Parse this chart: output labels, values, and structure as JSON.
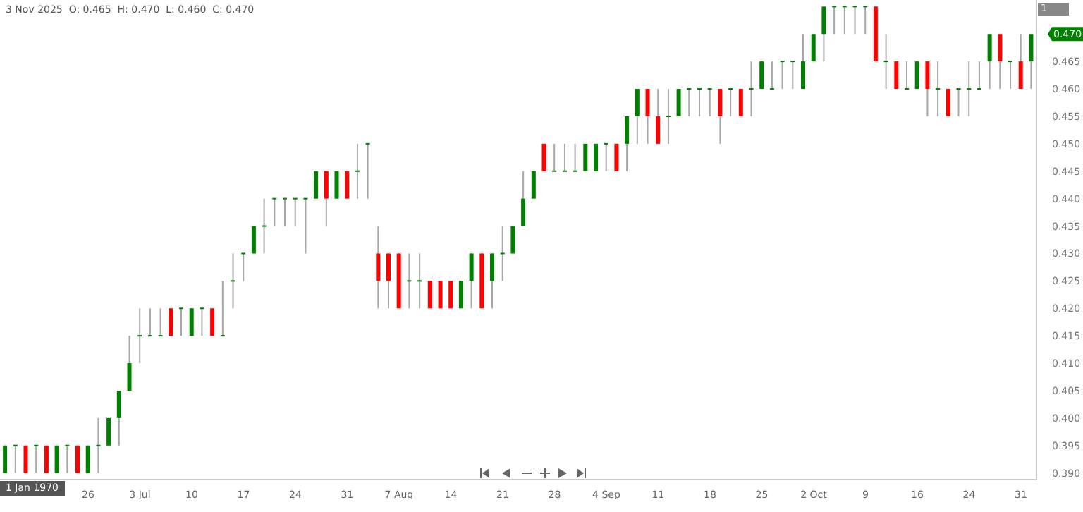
{
  "chart_data": {
    "type": "candlestick",
    "title": "3 Nov 2025  O: 0.465  H: 0.470  L: 0.460  C: 0.470",
    "annotations": [
      "1 Jan 1970",
      "1"
    ],
    "colors": [
      "#008000",
      "#008000",
      "#ff0000",
      "#008000",
      "#ff0000",
      "#008000",
      "#008000",
      "#ff0000",
      "#008000",
      "#008000",
      "#008000",
      "#008000",
      "#008000",
      "#008000",
      "#008000",
      "#008000",
      "#ff0000",
      "#008000",
      "#008000",
      "#008000",
      "#ff0000",
      "#008000",
      "#008000",
      "#008000",
      "#008000",
      "#008000",
      "#008000",
      "#008000",
      "#008000",
      "#008000",
      "#008000",
      "#ff0000",
      "#008000",
      "#ff0000",
      "#008000",
      "#008000",
      "#ff0000",
      "#ff0000",
      "#ff0000",
      "#008000",
      "#008000",
      "#ff0000",
      "#ff0000",
      "#ff0000",
      "#008000",
      "#008000",
      "#ff0000",
      "#008000",
      "#008000",
      "#008000",
      "#008000",
      "#008000",
      "#ff0000",
      "#008000",
      "#008000",
      "#008000",
      "#008000",
      "#008000",
      "#008000",
      "#ff0000",
      "#008000",
      "#008000",
      "#ff0000",
      "#ff0000",
      "#008000",
      "#008000",
      "#008000",
      "#008000",
      "#008000",
      "#ff0000",
      "#008000",
      "#ff0000",
      "#008000",
      "#008000",
      "#008000",
      "#008000",
      "#008000",
      "#008000",
      "#008000",
      "#008000",
      "#008000",
      "#008000",
      "#008000",
      "#008000",
      "#ff0000",
      "#008000",
      "#ff0000",
      "#008000",
      "#008000",
      "#ff0000",
      "#008000",
      "#ff0000",
      "#008000",
      "#008000",
      "#008000",
      "#008000",
      "#ff0000",
      "#008000",
      "#ff0000",
      "#008000"
    ],
    "categories": [
      null,
      null,
      null,
      null,
      null,
      null,
      null,
      null,
      "26",
      null,
      null,
      null,
      null,
      "3 Jul",
      null,
      null,
      null,
      null,
      "10",
      null,
      null,
      null,
      null,
      "17",
      null,
      null,
      null,
      null,
      "24",
      null,
      null,
      null,
      null,
      "31",
      null,
      null,
      null,
      null,
      "7 Aug",
      null,
      null,
      null,
      null,
      "14",
      null,
      null,
      null,
      null,
      "21",
      null,
      null,
      null,
      null,
      "28",
      null,
      null,
      null,
      null,
      "4 Sep",
      null,
      null,
      null,
      null,
      "11",
      null,
      null,
      null,
      null,
      "18",
      null,
      null,
      null,
      null,
      "25",
      null,
      null,
      null,
      null,
      "2 Oct",
      null,
      null,
      null,
      null,
      "9",
      null,
      null,
      null,
      null,
      "16",
      null,
      null,
      null,
      null,
      "24",
      null,
      null,
      null,
      null,
      "31",
      null
    ],
    "ohlc": [
      [
        0.39,
        0.395,
        0.39,
        0.395
      ],
      [
        0.395,
        0.395,
        0.39,
        0.395
      ],
      [
        0.395,
        0.395,
        0.39,
        0.39
      ],
      [
        0.395,
        0.395,
        0.39,
        0.395
      ],
      [
        0.395,
        0.395,
        0.39,
        0.39
      ],
      [
        0.39,
        0.395,
        0.39,
        0.395
      ],
      [
        0.395,
        0.395,
        0.39,
        0.395
      ],
      [
        0.395,
        0.395,
        0.39,
        0.39
      ],
      [
        0.39,
        0.395,
        0.39,
        0.395
      ],
      [
        0.395,
        0.4,
        0.39,
        0.395
      ],
      [
        0.395,
        0.4,
        0.395,
        0.4
      ],
      [
        0.4,
        0.405,
        0.395,
        0.405
      ],
      [
        0.405,
        0.415,
        0.405,
        0.41
      ],
      [
        0.415,
        0.42,
        0.41,
        0.415
      ],
      [
        0.415,
        0.42,
        0.415,
        0.415
      ],
      [
        0.415,
        0.42,
        0.415,
        0.415
      ],
      [
        0.42,
        0.42,
        0.415,
        0.415
      ],
      [
        0.42,
        0.42,
        0.415,
        0.42
      ],
      [
        0.415,
        0.42,
        0.415,
        0.42
      ],
      [
        0.42,
        0.42,
        0.415,
        0.42
      ],
      [
        0.42,
        0.42,
        0.415,
        0.415
      ],
      [
        0.415,
        0.425,
        0.415,
        0.415
      ],
      [
        0.425,
        0.43,
        0.42,
        0.425
      ],
      [
        0.43,
        0.43,
        0.425,
        0.43
      ],
      [
        0.43,
        0.435,
        0.43,
        0.435
      ],
      [
        0.435,
        0.44,
        0.43,
        0.435
      ],
      [
        0.44,
        0.44,
        0.435,
        0.44
      ],
      [
        0.44,
        0.44,
        0.435,
        0.44
      ],
      [
        0.44,
        0.44,
        0.435,
        0.44
      ],
      [
        0.44,
        0.44,
        0.43,
        0.44
      ],
      [
        0.44,
        0.445,
        0.44,
        0.445
      ],
      [
        0.445,
        0.445,
        0.435,
        0.44
      ],
      [
        0.44,
        0.445,
        0.44,
        0.445
      ],
      [
        0.445,
        0.445,
        0.44,
        0.44
      ],
      [
        0.445,
        0.45,
        0.44,
        0.445
      ],
      [
        0.45,
        0.45,
        0.44,
        0.45
      ],
      [
        0.43,
        0.435,
        0.42,
        0.425
      ],
      [
        0.43,
        0.43,
        0.42,
        0.425
      ],
      [
        0.43,
        0.43,
        0.42,
        0.42
      ],
      [
        0.425,
        0.43,
        0.42,
        0.425
      ],
      [
        0.425,
        0.43,
        0.42,
        0.425
      ],
      [
        0.425,
        0.425,
        0.42,
        0.42
      ],
      [
        0.425,
        0.425,
        0.42,
        0.42
      ],
      [
        0.425,
        0.425,
        0.42,
        0.42
      ],
      [
        0.42,
        0.425,
        0.42,
        0.425
      ],
      [
        0.425,
        0.43,
        0.42,
        0.43
      ],
      [
        0.43,
        0.43,
        0.42,
        0.42
      ],
      [
        0.425,
        0.43,
        0.42,
        0.43
      ],
      [
        0.43,
        0.435,
        0.425,
        0.43
      ],
      [
        0.43,
        0.435,
        0.43,
        0.435
      ],
      [
        0.435,
        0.445,
        0.435,
        0.44
      ],
      [
        0.44,
        0.445,
        0.44,
        0.445
      ],
      [
        0.45,
        0.45,
        0.445,
        0.445
      ],
      [
        0.445,
        0.45,
        0.445,
        0.445
      ],
      [
        0.445,
        0.45,
        0.445,
        0.445
      ],
      [
        0.445,
        0.45,
        0.445,
        0.445
      ],
      [
        0.445,
        0.45,
        0.445,
        0.45
      ],
      [
        0.445,
        0.45,
        0.445,
        0.45
      ],
      [
        0.45,
        0.45,
        0.445,
        0.45
      ],
      [
        0.45,
        0.45,
        0.445,
        0.445
      ],
      [
        0.45,
        0.455,
        0.445,
        0.455
      ],
      [
        0.455,
        0.46,
        0.45,
        0.46
      ],
      [
        0.46,
        0.46,
        0.45,
        0.455
      ],
      [
        0.455,
        0.46,
        0.45,
        0.45
      ],
      [
        0.455,
        0.46,
        0.45,
        0.455
      ],
      [
        0.455,
        0.46,
        0.455,
        0.46
      ],
      [
        0.46,
        0.46,
        0.455,
        0.46
      ],
      [
        0.46,
        0.46,
        0.455,
        0.46
      ],
      [
        0.46,
        0.46,
        0.455,
        0.46
      ],
      [
        0.46,
        0.46,
        0.45,
        0.455
      ],
      [
        0.46,
        0.46,
        0.455,
        0.46
      ],
      [
        0.46,
        0.46,
        0.455,
        0.455
      ],
      [
        0.46,
        0.465,
        0.455,
        0.46
      ],
      [
        0.46,
        0.465,
        0.46,
        0.465
      ],
      [
        0.46,
        0.465,
        0.46,
        0.46
      ],
      [
        0.465,
        0.465,
        0.46,
        0.465
      ],
      [
        0.465,
        0.465,
        0.46,
        0.465
      ],
      [
        0.46,
        0.47,
        0.46,
        0.465
      ],
      [
        0.465,
        0.47,
        0.465,
        0.47
      ],
      [
        0.47,
        0.475,
        0.465,
        0.475
      ],
      [
        0.475,
        0.475,
        0.47,
        0.475
      ],
      [
        0.475,
        0.475,
        0.47,
        0.475
      ],
      [
        0.475,
        0.475,
        0.47,
        0.475
      ],
      [
        0.475,
        0.475,
        0.47,
        0.475
      ],
      [
        0.475,
        0.475,
        0.465,
        0.465
      ],
      [
        0.465,
        0.47,
        0.46,
        0.465
      ],
      [
        0.465,
        0.465,
        0.46,
        0.46
      ],
      [
        0.46,
        0.465,
        0.46,
        0.46
      ],
      [
        0.46,
        0.465,
        0.46,
        0.465
      ],
      [
        0.465,
        0.465,
        0.455,
        0.46
      ],
      [
        0.46,
        0.465,
        0.455,
        0.46
      ],
      [
        0.46,
        0.46,
        0.455,
        0.455
      ],
      [
        0.46,
        0.46,
        0.455,
        0.46
      ],
      [
        0.46,
        0.465,
        0.455,
        0.46
      ],
      [
        0.46,
        0.465,
        0.46,
        0.46
      ],
      [
        0.465,
        0.47,
        0.46,
        0.47
      ],
      [
        0.47,
        0.47,
        0.46,
        0.465
      ],
      [
        0.465,
        0.465,
        0.46,
        0.465
      ],
      [
        0.465,
        0.47,
        0.46,
        0.46
      ],
      [
        0.465,
        0.47,
        0.46,
        0.47
      ]
    ],
    "ylim": [
      0.3888,
      0.4762
    ],
    "yticks": [
      {
        "value": 0.39,
        "label": "0.390"
      },
      {
        "value": 0.395,
        "label": "0.395"
      },
      {
        "value": 0.4,
        "label": "0.400"
      },
      {
        "value": 0.405,
        "label": "0.405"
      },
      {
        "value": 0.41,
        "label": "0.410"
      },
      {
        "value": 0.415,
        "label": "0.415"
      },
      {
        "value": 0.42,
        "label": "0.420"
      },
      {
        "value": 0.425,
        "label": "0.425"
      },
      {
        "value": 0.43,
        "label": "0.430"
      },
      {
        "value": 0.435,
        "label": "0.435"
      },
      {
        "value": 0.44,
        "label": "0.440"
      },
      {
        "value": 0.445,
        "label": "0.445"
      },
      {
        "value": 0.45,
        "label": "0.450"
      },
      {
        "value": 0.455,
        "label": "0.455"
      },
      {
        "value": 0.46,
        "label": "0.460"
      },
      {
        "value": 0.465,
        "label": "0.465"
      },
      {
        "value": 0.47,
        "label": "0.470"
      }
    ]
  }
}
